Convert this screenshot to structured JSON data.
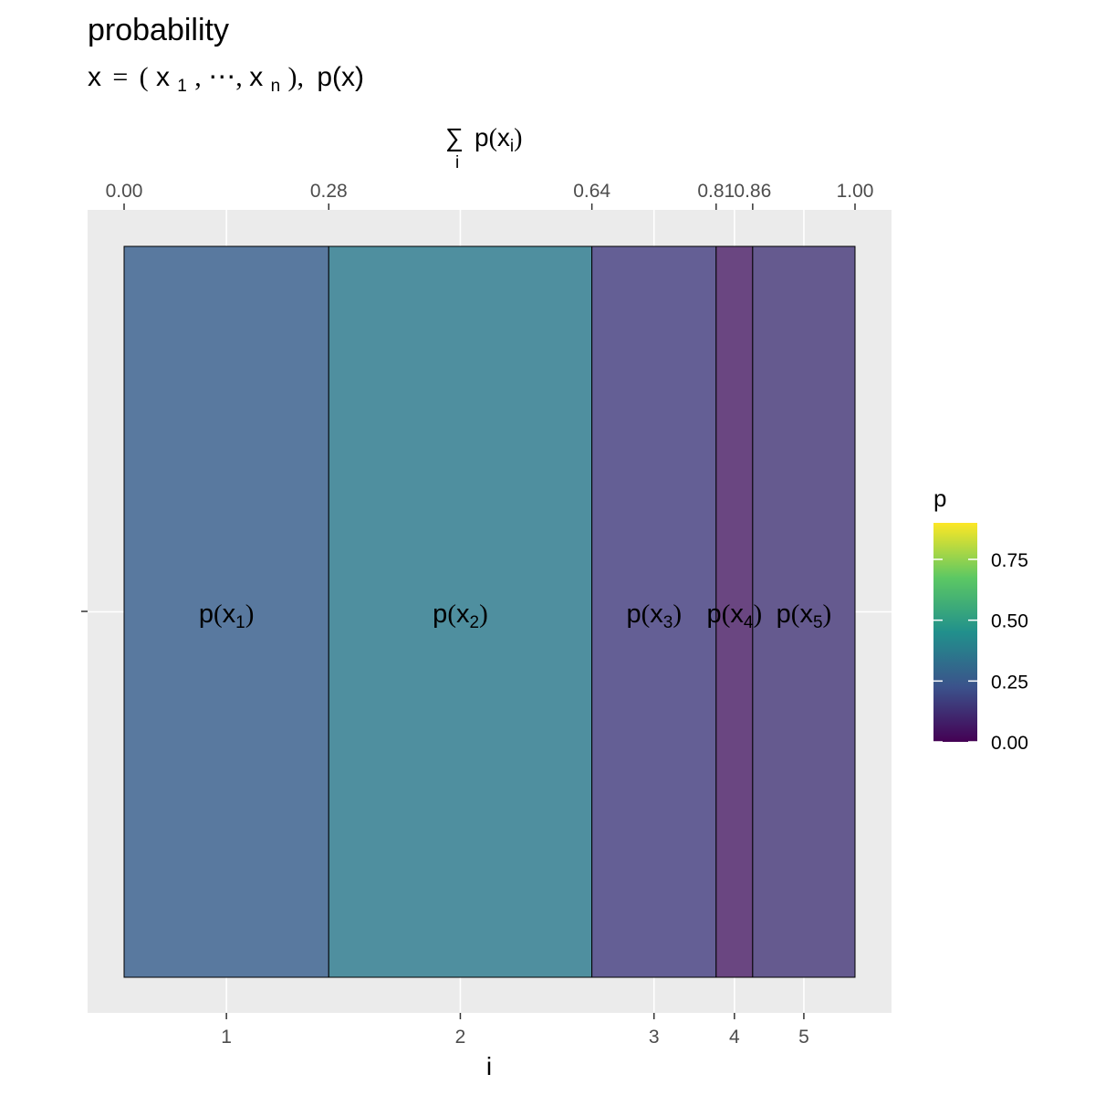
{
  "chart_data": {
    "type": "bar",
    "title": "probability",
    "subtitle": "x = (x1, ⋯, xn), p(x)",
    "subtitle_parts": {
      "x": "x",
      "eq": "=",
      "open": "(",
      "x1": "x",
      "sub1": "1",
      "dots": ", ⋯, ",
      "xn": "x",
      "subn": "n",
      "close": "),",
      "px": "p(x)"
    },
    "xlabel": "i",
    "x2label": "∑ p(xi)",
    "x2label_parts": {
      "sum": "∑",
      "idx": "i",
      "p": "p",
      "open": "(",
      "x": "x",
      "sub": "i",
      "close": ")"
    },
    "categories": [
      "1",
      "2",
      "3",
      "4",
      "5"
    ],
    "values": [
      0.28,
      0.36,
      0.17,
      0.05,
      0.14
    ],
    "cumulative_ticks": [
      "0.00",
      "0.28",
      "0.64",
      "0.81",
      "0.86",
      "1.00"
    ],
    "cumulative_breaks": [
      0,
      0.28,
      0.64,
      0.81,
      0.86,
      1.0
    ],
    "labels": [
      {
        "p": "p",
        "x": "x",
        "sub": "1"
      },
      {
        "p": "p",
        "x": "x",
        "sub": "2"
      },
      {
        "p": "p",
        "x": "x",
        "sub": "3"
      },
      {
        "p": "p",
        "x": "x",
        "sub": "4"
      },
      {
        "p": "p",
        "x": "x",
        "sub": "5"
      }
    ],
    "xlim": [
      0,
      1
    ],
    "grid": true,
    "legend": {
      "title": "p",
      "ticks": [
        "0.00",
        "0.25",
        "0.50",
        "0.75"
      ],
      "tick_values": [
        0,
        0.25,
        0.5,
        0.75
      ],
      "range": [
        0,
        0.9
      ],
      "placement": "right",
      "colors": [
        "#440154",
        "#3b528b",
        "#21908c",
        "#5dc863",
        "#fde725"
      ]
    },
    "bar_colors": [
      "#59799f",
      "#4f8f9f",
      "#645f95",
      "#6a4681",
      "#655a8f"
    ],
    "panel_background": "#ebebeb"
  }
}
